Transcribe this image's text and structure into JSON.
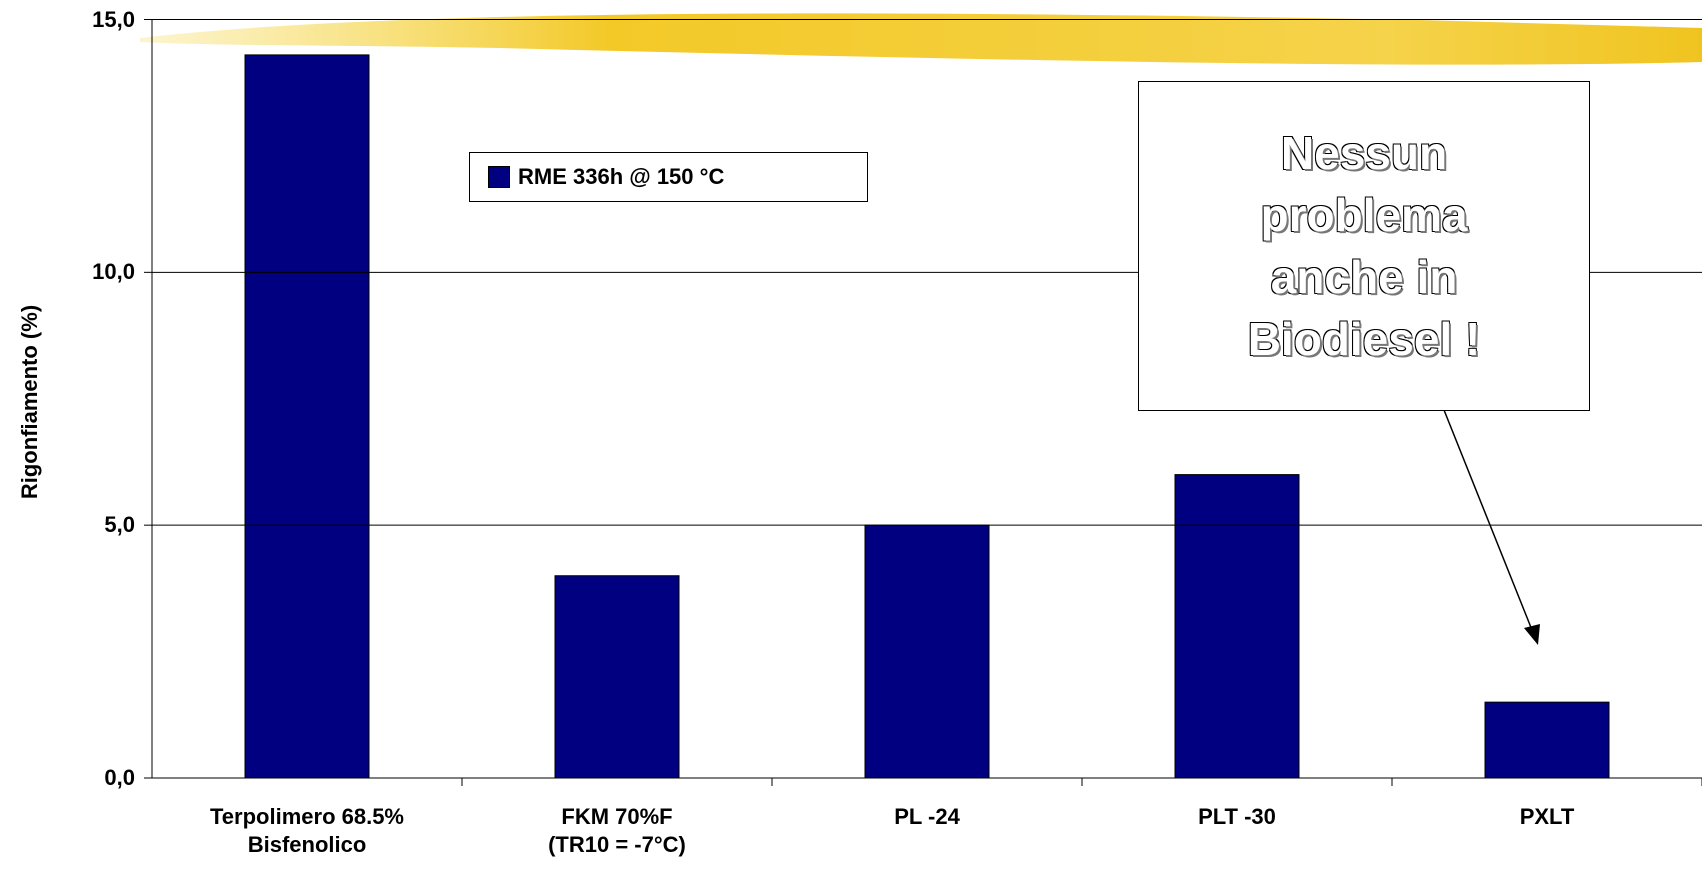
{
  "chart_data": {
    "type": "bar",
    "y_label": "Rigonfiamento (%)",
    "categories": [
      "Terpolimero 68.5%\nBisfenolico",
      "FKM 70%F\n(TR10 = -7°C)",
      "PL -24",
      "PLT -30",
      "PXLT"
    ],
    "series": [
      {
        "name": "RME 336h @ 150 °C",
        "color": "#000080",
        "values": [
          14.3,
          4.0,
          5.0,
          6.0,
          1.5
        ]
      }
    ],
    "ylim": [
      0,
      15
    ],
    "yticks": [
      {
        "value": 0,
        "label": "0,0"
      },
      {
        "value": 5,
        "label": "5,0"
      },
      {
        "value": 10,
        "label": "10,0"
      },
      {
        "value": 15,
        "label": "15,0"
      }
    ],
    "grid": true,
    "annotation": "Nessun problema anche in Biodiesel !"
  }
}
